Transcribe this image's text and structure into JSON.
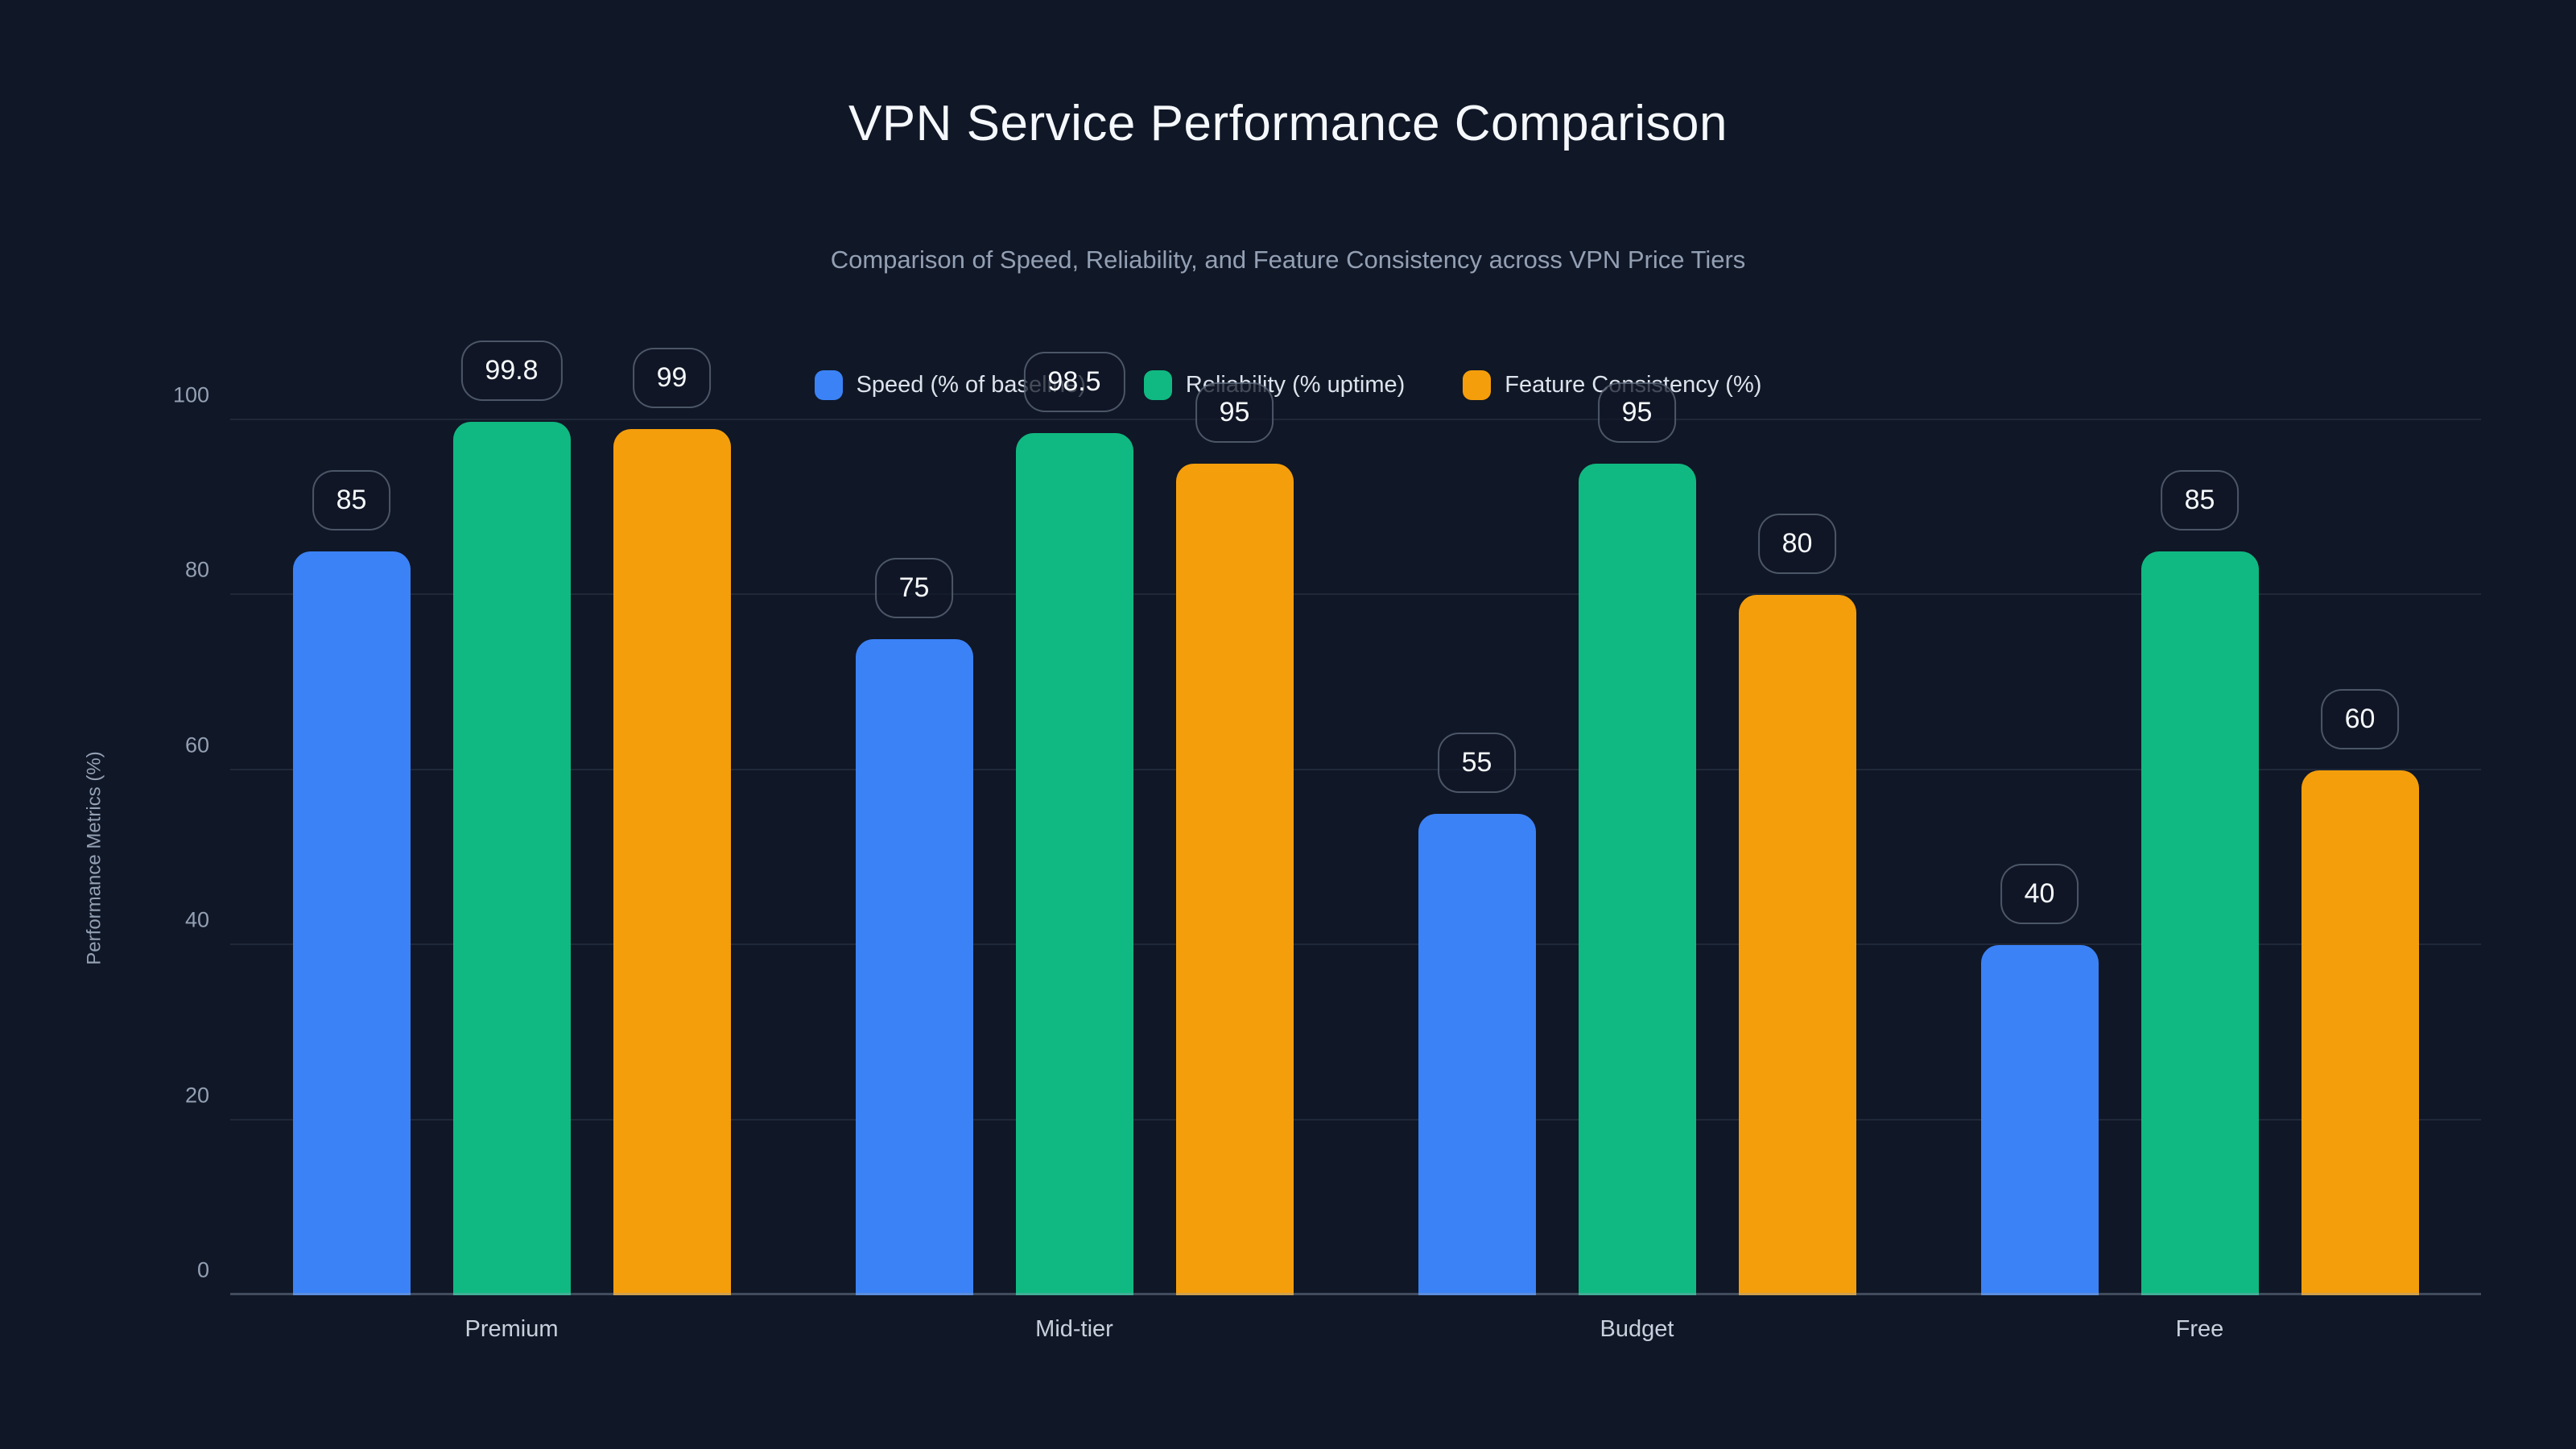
{
  "title": "VPN Service Performance Comparison",
  "subtitle": "Comparison of Speed, Reliability, and Feature Consistency across VPN Price Tiers",
  "colors": {
    "background": "#101726",
    "speed": "#3b82f6",
    "reliability": "#10b981",
    "feature_consistency": "#f59e0b",
    "grid": "rgba(148,163,184,0.13)",
    "text_primary": "#f5f8fc",
    "text_secondary": "#93a0b4"
  },
  "chart_data": {
    "type": "bar",
    "categories": [
      "Premium",
      "Mid-tier",
      "Budget",
      "Free"
    ],
    "series": [
      {
        "name": "Speed (% of baseline)",
        "color": "#3b82f6",
        "values": [
          85,
          75,
          55,
          40
        ]
      },
      {
        "name": "Reliability (% uptime)",
        "color": "#10b981",
        "values": [
          99.8,
          98.5,
          95,
          85
        ]
      },
      {
        "name": "Feature Consistency (%)",
        "color": "#f59e0b",
        "values": [
          99,
          95,
          80,
          60
        ]
      }
    ],
    "title": "VPN Service Performance Comparison",
    "subtitle": "Comparison of Speed, Reliability, and Feature Consistency across VPN Price Tiers",
    "xlabel": "",
    "ylabel": "Performance Metrics (%)",
    "ylim": [
      0,
      100
    ],
    "yticks": [
      0,
      20,
      40,
      60,
      80,
      100
    ],
    "grid": true,
    "legend_position": "top-center",
    "value_labels": "rounded pill above each bar"
  }
}
